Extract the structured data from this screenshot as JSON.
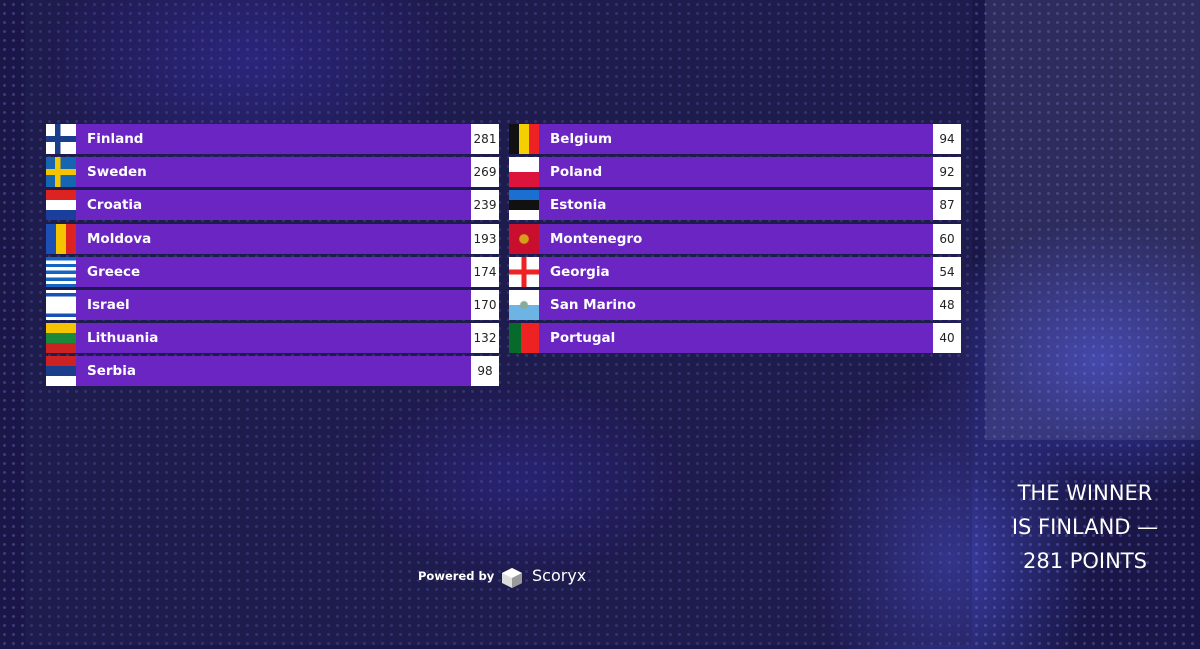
{
  "scoreboard": {
    "left": [
      {
        "country": "Finland",
        "points": 281
      },
      {
        "country": "Sweden",
        "points": 269
      },
      {
        "country": "Croatia",
        "points": 239
      },
      {
        "country": "Moldova",
        "points": 193
      },
      {
        "country": "Greece",
        "points": 174
      },
      {
        "country": "Israel",
        "points": 170
      },
      {
        "country": "Lithuania",
        "points": 132
      },
      {
        "country": "Serbia",
        "points": 98
      }
    ],
    "right": [
      {
        "country": "Belgium",
        "points": 94
      },
      {
        "country": "Poland",
        "points": 92
      },
      {
        "country": "Estonia",
        "points": 87
      },
      {
        "country": "Montenegro",
        "points": 60
      },
      {
        "country": "Georgia",
        "points": 54
      },
      {
        "country": "San Marino",
        "points": 48
      },
      {
        "country": "Portugal",
        "points": 40
      }
    ]
  },
  "footer": {
    "powered_by": "Powered by",
    "brand": "Scoryx"
  },
  "winner": {
    "lines": [
      "THE WINNER",
      "IS FINLAND —",
      "281 POINTS"
    ]
  }
}
